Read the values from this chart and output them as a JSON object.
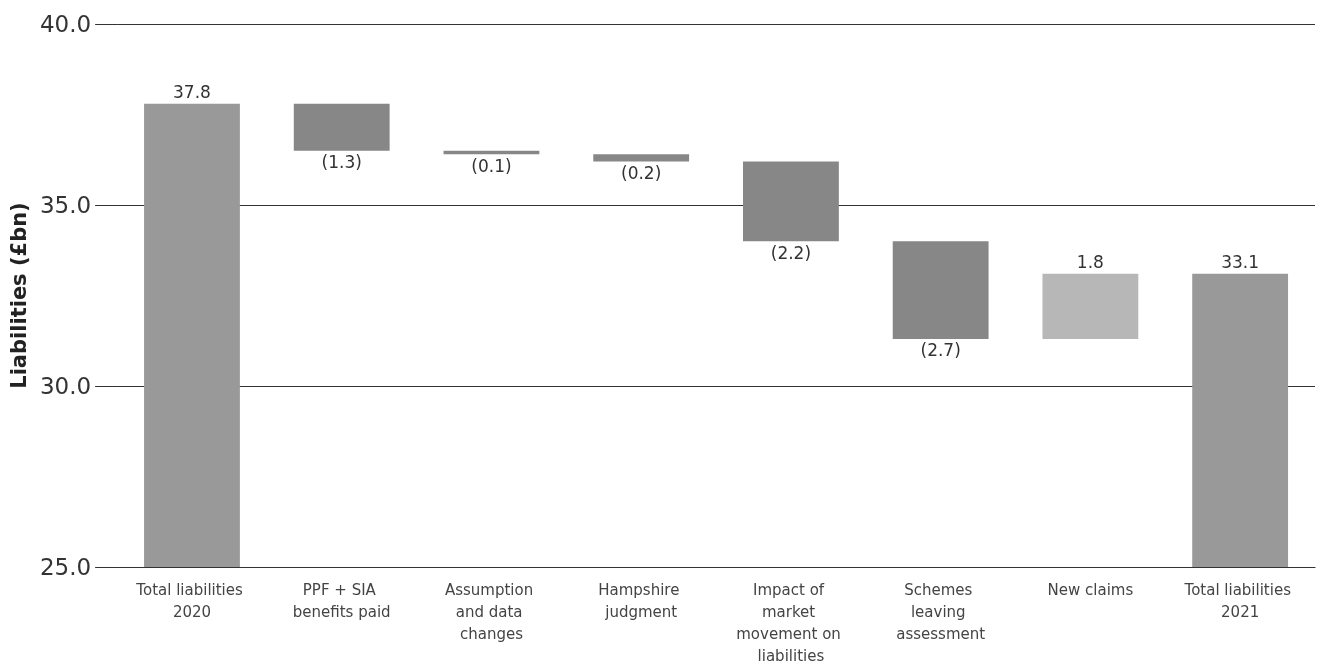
{
  "chart_data": {
    "type": "bar",
    "ylabel": "Liabilities (£bn)",
    "categories": [
      "Total liabilities 2020",
      "PPF + SIA benefits paid",
      "Assumption and data changes",
      "Hampshire judgment",
      "Impact of market movement on liabilities",
      "Schemes leaving assessment",
      "New claims",
      "Total liabilities 2021"
    ],
    "values": [
      37.8,
      -1.3,
      -0.1,
      -0.2,
      -2.2,
      -2.7,
      1.8,
      33.1
    ],
    "base": [
      0,
      37.8,
      36.5,
      36.4,
      36.2,
      34.0,
      31.3,
      0
    ],
    "colors": [
      "#999999",
      "#878787",
      "#878787",
      "#878787",
      "#878787",
      "#878787",
      "#b7b7b7",
      "#999999"
    ],
    "value_labels": [
      "37.8",
      "(1.3)",
      "(0.1)",
      "(0.2)",
      "(2.2)",
      "(2.7)",
      "1.8",
      "33.1"
    ],
    "ylim": [
      25,
      40
    ],
    "yticks": [
      {
        "value": 25,
        "label": "25.0"
      },
      {
        "value": 30,
        "label": "30.0"
      },
      {
        "value": 35,
        "label": "35.0"
      },
      {
        "value": 40,
        "label": "40.0"
      }
    ],
    "grid": "y"
  }
}
